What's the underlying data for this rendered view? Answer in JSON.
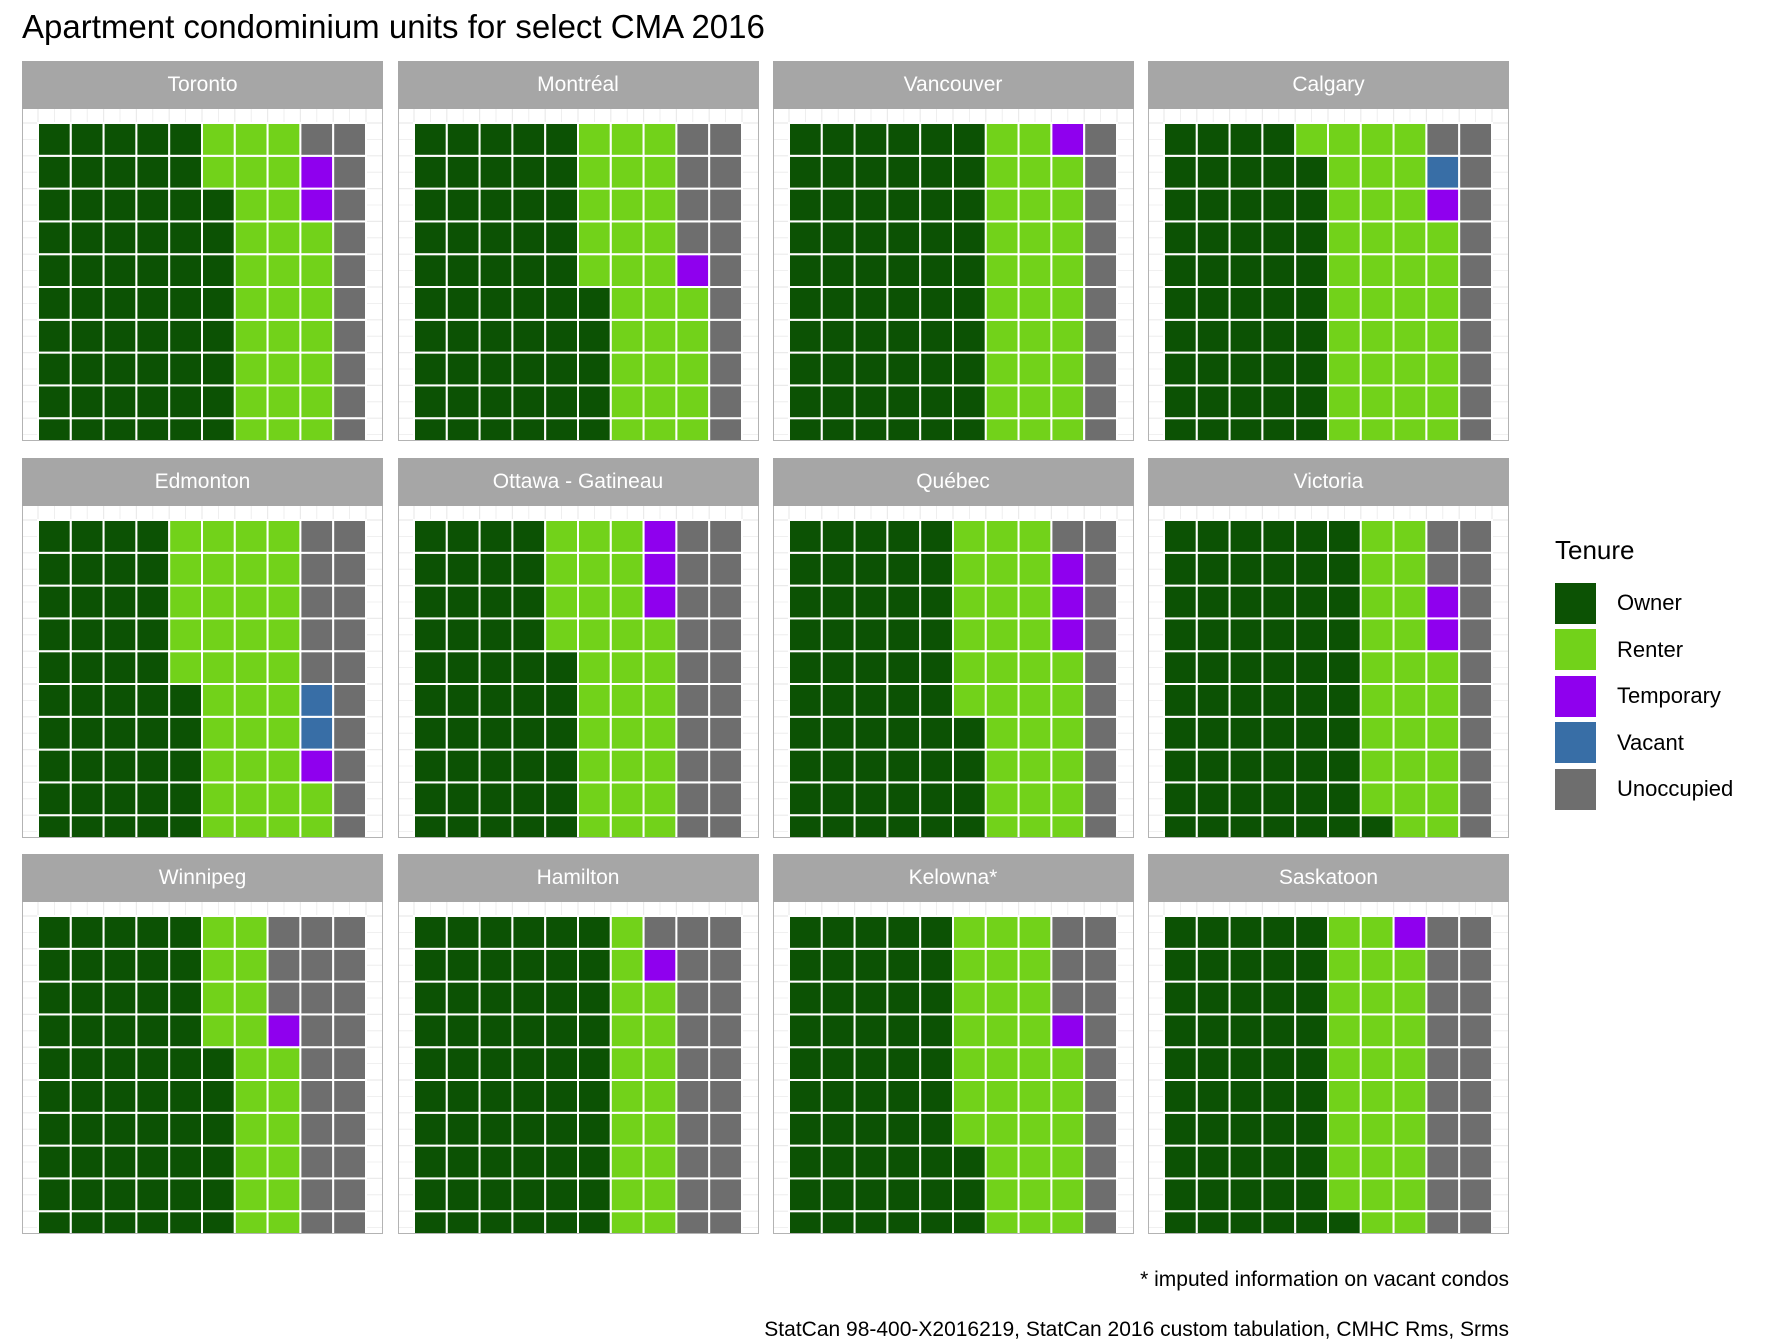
{
  "chart_data": {
    "type": "waffle",
    "title": "Apartment condominium units for select CMA 2016",
    "grid": {
      "rows": 10,
      "cols": 10,
      "fill_order": "column-major, bottom-to-top, left-to-right"
    },
    "categories": [
      "Owner",
      "Renter",
      "Temporary",
      "Vacant",
      "Unoccupied"
    ],
    "legend": {
      "title": "Tenure",
      "position": "right",
      "items": [
        {
          "label": "Owner",
          "color": "#0c5204"
        },
        {
          "label": "Renter",
          "color": "#72d21a"
        },
        {
          "label": "Temporary",
          "color": "#8f00ee"
        },
        {
          "label": "Vacant",
          "color": "#386ea6"
        },
        {
          "label": "Unoccupied",
          "color": "#6e6e6e"
        }
      ]
    },
    "panels": [
      {
        "name": "Toronto",
        "values": {
          "Owner": 58,
          "Renter": 29,
          "Temporary": 2,
          "Vacant": 0,
          "Unoccupied": 11
        }
      },
      {
        "name": "Montréal",
        "values": {
          "Owner": 55,
          "Renter": 30,
          "Temporary": 1,
          "Vacant": 0,
          "Unoccupied": 14
        }
      },
      {
        "name": "Vancouver",
        "values": {
          "Owner": 60,
          "Renter": 29,
          "Temporary": 1,
          "Vacant": 0,
          "Unoccupied": 10
        }
      },
      {
        "name": "Calgary",
        "values": {
          "Owner": 49,
          "Renter": 38,
          "Temporary": 1,
          "Vacant": 1,
          "Unoccupied": 11
        }
      },
      {
        "name": "Edmonton",
        "values": {
          "Owner": 45,
          "Renter": 37,
          "Temporary": 1,
          "Vacant": 2,
          "Unoccupied": 15
        }
      },
      {
        "name": "Ottawa - Gatineau",
        "values": {
          "Owner": 46,
          "Renter": 31,
          "Temporary": 3,
          "Vacant": 0,
          "Unoccupied": 20
        }
      },
      {
        "name": "Québec",
        "values": {
          "Owner": 54,
          "Renter": 32,
          "Temporary": 3,
          "Vacant": 0,
          "Unoccupied": 11
        }
      },
      {
        "name": "Victoria",
        "values": {
          "Owner": 61,
          "Renter": 25,
          "Temporary": 2,
          "Vacant": 0,
          "Unoccupied": 12
        }
      },
      {
        "name": "Winnipeg",
        "values": {
          "Owner": 56,
          "Renter": 20,
          "Temporary": 1,
          "Vacant": 0,
          "Unoccupied": 23
        }
      },
      {
        "name": "Hamilton",
        "values": {
          "Owner": 60,
          "Renter": 18,
          "Temporary": 1,
          "Vacant": 0,
          "Unoccupied": 21
        }
      },
      {
        "name": "Kelowna*",
        "values": {
          "Owner": 53,
          "Renter": 33,
          "Temporary": 1,
          "Vacant": 0,
          "Unoccupied": 13
        }
      },
      {
        "name": "Saskatoon",
        "values": {
          "Owner": 51,
          "Renter": 28,
          "Temporary": 1,
          "Vacant": 0,
          "Unoccupied": 20
        }
      }
    ],
    "colors": {
      "panel_strip": "#a6a6a6",
      "gridline": "#ebebeb",
      "cell_border": "#ffffff"
    }
  },
  "captions": {
    "note": "* imputed information on vacant condos",
    "source": "StatCan 98-400-X2016219, StatCan 2016 custom tabulation, CMHC Rms, Srms"
  }
}
